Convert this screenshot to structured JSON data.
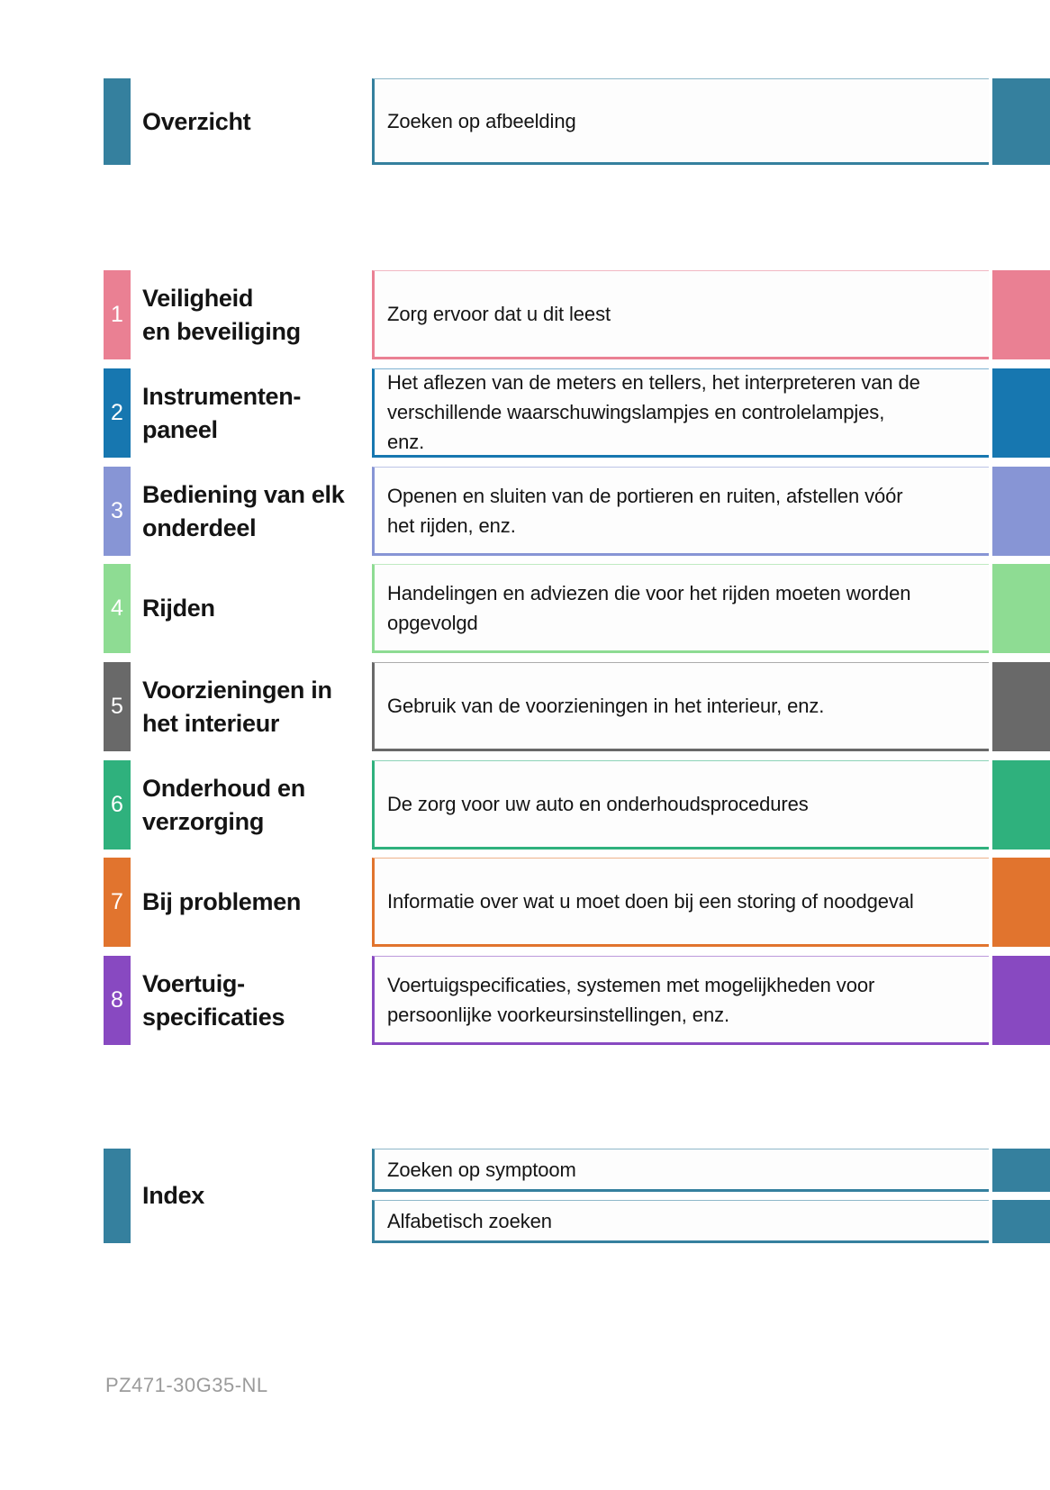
{
  "palette": {
    "teal": "#35809E",
    "text": "#141414",
    "number_text": "#FFFFFF",
    "footer_gray": "#9B9B9B",
    "page_background": "#FFFFFF"
  },
  "overview": {
    "title": "Overzicht",
    "link_text": "Zoeken op afbeelding"
  },
  "sections": [
    {
      "number": "1",
      "title": "Veiligheid\nen beveiliging",
      "description": "Zorg ervoor dat u dit leest",
      "color": "#EA8093"
    },
    {
      "number": "2",
      "title": "Instrumenten-\npaneel",
      "description": "Het aflezen van de meters en tellers, het interpreteren van de\nverschillende waarschuwingslampjes en controlelampjes,\nenz.",
      "color": "#1777B0"
    },
    {
      "number": "3",
      "title": "Bediening van elk\nonderdeel",
      "description": "Openen en sluiten van de portieren en ruiten, afstellen vóór\nhet rijden, enz.",
      "color": "#8795D5"
    },
    {
      "number": "4",
      "title": "Rijden",
      "description": "Handelingen en adviezen die voor het rijden moeten worden\nopgevolgd",
      "color": "#8EDC93"
    },
    {
      "number": "5",
      "title": "Voorzieningen in\nhet interieur",
      "description": "Gebruik van de voorzieningen in het interieur, enz.",
      "color": "#696969"
    },
    {
      "number": "6",
      "title": "Onderhoud en\nverzorging",
      "description": "De zorg voor uw auto en onderhoudsprocedures",
      "color": "#2FB17D"
    },
    {
      "number": "7",
      "title": "Bij problemen",
      "description": "Informatie over wat u moet doen bij een storing of noodgeval",
      "color": "#E1742E"
    },
    {
      "number": "8",
      "title": "Voertuig-\nspecificaties",
      "description": "Voertuigspecificaties, systemen met mogelijkheden voor\npersoonlijke voorkeursinstellingen, enz.",
      "color": "#8849C1"
    }
  ],
  "index": {
    "title": "Index",
    "items": [
      "Zoeken op symptoom",
      "Alfabetisch zoeken"
    ]
  },
  "footer": {
    "code": "PZ471-30G35-NL"
  }
}
